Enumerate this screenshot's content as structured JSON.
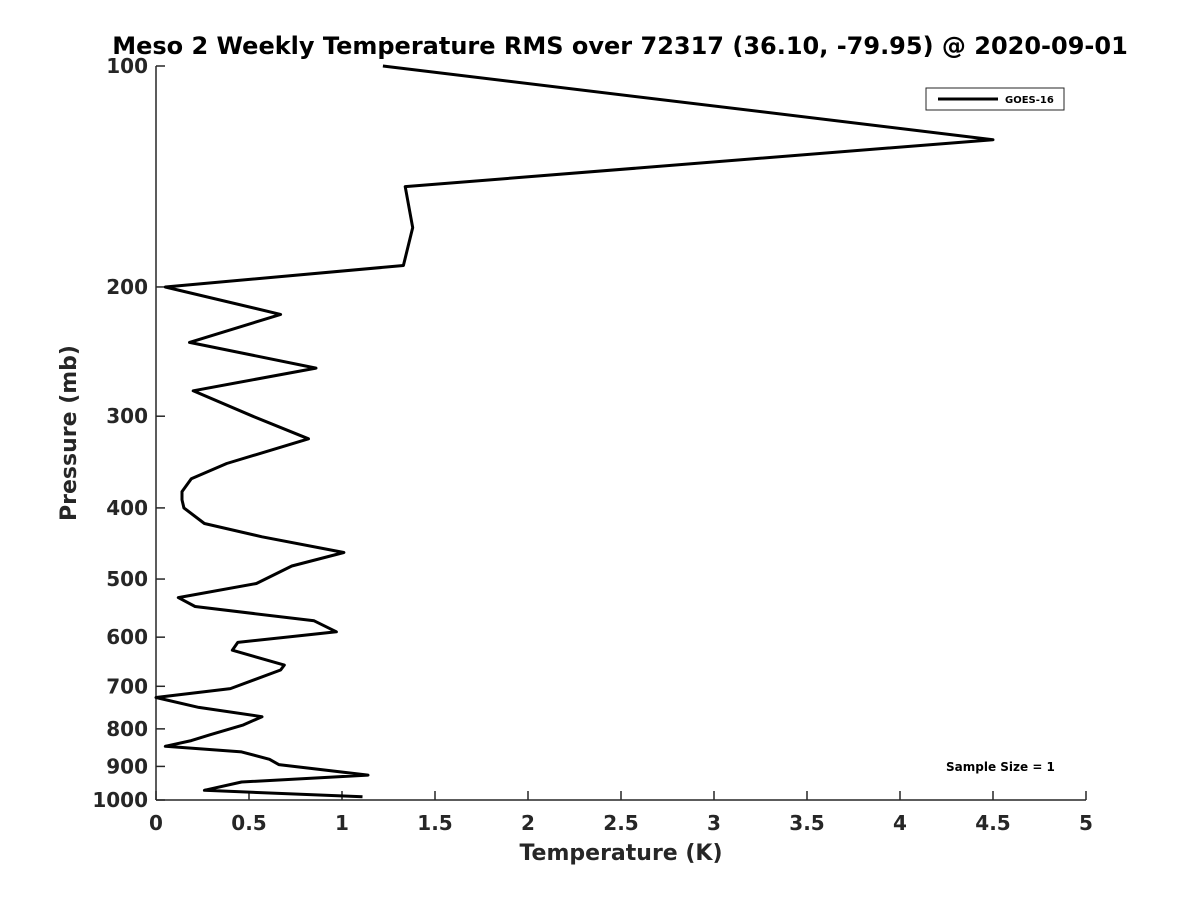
{
  "chart_data": {
    "type": "line",
    "title": "Meso 2 Weekly Temperature RMS over 72317 (36.10, -79.95) @ 2020-09-01",
    "xlabel": "Temperature (K)",
    "ylabel": "Pressure (mb)",
    "xlim": [
      0,
      5
    ],
    "ylim": [
      100,
      1000
    ],
    "y_scale": "log",
    "y_reversed": true,
    "x_ticks": [
      "0",
      "0.5",
      "1",
      "1.5",
      "2",
      "2.5",
      "3",
      "3.5",
      "4",
      "4.5",
      "5"
    ],
    "y_ticks": [
      "100",
      "200",
      "300",
      "400",
      "500",
      "600",
      "700",
      "800",
      "900",
      "1000"
    ],
    "grid": false,
    "legend_position": "top-right",
    "annotation": "Sample Size = 1",
    "series": [
      {
        "name": "GOES-16",
        "color": "#000000",
        "x": [
          1.11,
          0.26,
          0.46,
          1.14,
          0.66,
          0.61,
          0.46,
          0.05,
          0.19,
          0.29,
          0.47,
          0.57,
          0.23,
          0.0,
          0.4,
          0.67,
          0.69,
          0.41,
          0.44,
          0.97,
          0.85,
          0.21,
          0.12,
          0.54,
          0.73,
          1.01,
          0.57,
          0.26,
          0.15,
          0.14,
          0.14,
          0.19,
          0.38,
          0.82,
          0.52,
          0.2,
          0.86,
          0.18,
          0.67,
          0.05,
          1.33,
          1.38,
          1.34,
          4.5,
          1.22
        ],
        "y": [
          990,
          970,
          945,
          925,
          895,
          880,
          860,
          845,
          830,
          815,
          790,
          770,
          748,
          725,
          705,
          665,
          655,
          625,
          610,
          590,
          570,
          545,
          530,
          507,
          480,
          460,
          438,
          420,
          400,
          390,
          380,
          365,
          348,
          322,
          300,
          277,
          258,
          238,
          218,
          200,
          187,
          166,
          146,
          126,
          100
        ]
      }
    ]
  }
}
